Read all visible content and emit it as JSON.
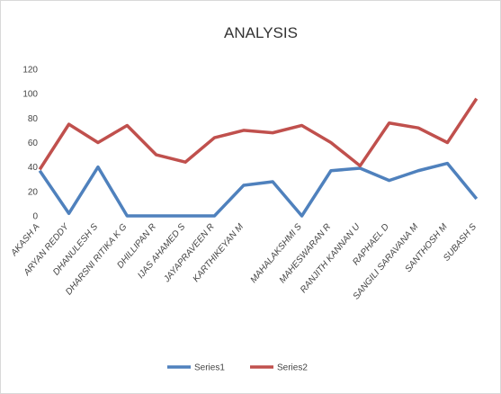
{
  "chart_data": {
    "type": "line",
    "title": "ANALYSIS",
    "categories": [
      "AKASH A",
      "ARYAN REDDY",
      "DHANULESH S",
      "DHARSNI RITIKA K G",
      "DHILLIPAN R",
      "IJAS AHAMED S",
      "JAYAPRAVEEN R",
      "KARTHIKEYAN M",
      null,
      "MAHALAKSHMI S",
      "MAHESWARAN R",
      "RANJITH KANNAN U",
      "RAPHAEL D",
      "SANGILI SARAVANA M",
      "SANTHOSH M",
      "SUBASH S"
    ],
    "series": [
      {
        "name": "Series1",
        "color": "#4f81bd",
        "values": [
          37,
          2,
          40,
          0,
          0,
          0,
          0,
          25,
          28,
          0,
          37,
          39,
          29,
          37,
          43,
          14
        ]
      },
      {
        "name": "Series2",
        "color": "#c0504d",
        "values": [
          38,
          75,
          60,
          74,
          50,
          44,
          64,
          70,
          68,
          74,
          60,
          41,
          76,
          72,
          60,
          96
        ]
      }
    ],
    "ylim": [
      0,
      120
    ],
    "yticks": [
      0,
      20,
      40,
      60,
      80,
      100,
      120
    ],
    "grid": false,
    "legend": "bottom"
  }
}
